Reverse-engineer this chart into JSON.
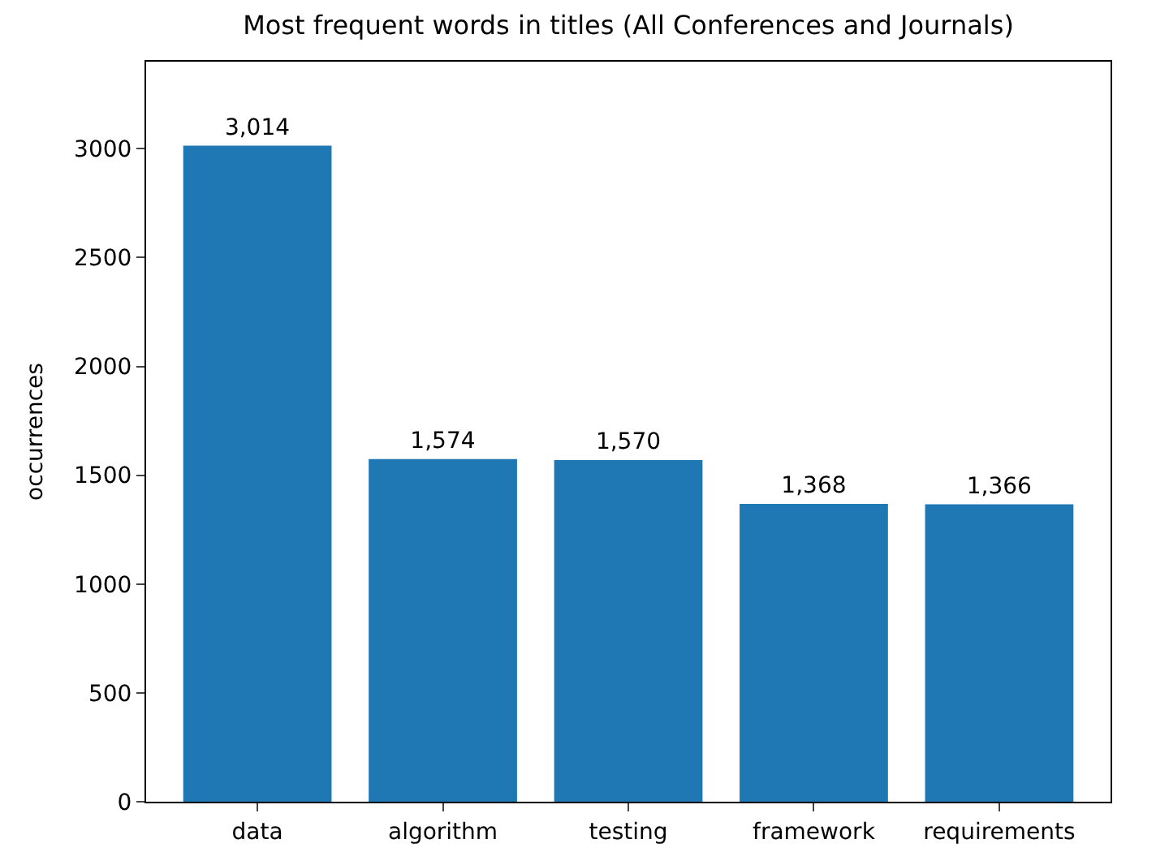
{
  "chart_data": {
    "type": "bar",
    "title": "Most frequent words in titles (All Conferences and Journals)",
    "ylabel": "occurrences",
    "categories": [
      "data",
      "algorithm",
      "testing",
      "framework",
      "requirements"
    ],
    "values": [
      3014,
      1574,
      1570,
      1368,
      1366
    ],
    "value_labels": [
      "3,014",
      "1,574",
      "1,570",
      "1,368",
      "1,366"
    ],
    "color": "#1f77b4",
    "ylim": [
      0,
      3400
    ],
    "yticks": [
      0,
      500,
      1000,
      1500,
      2000,
      2500,
      3000
    ],
    "legend": false
  }
}
